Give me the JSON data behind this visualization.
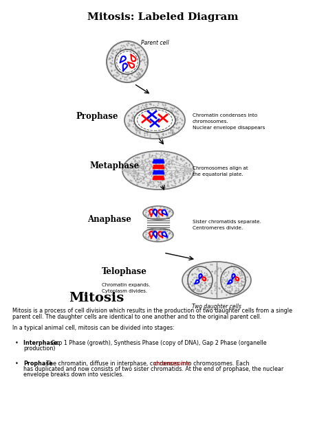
{
  "title": "Mitosis: Labeled Diagram",
  "bg_color": "#ffffff",
  "mitosis_label": "Mitosis",
  "para1_line1": "Mitosis is a process of cell division which results in the production of two daughter cells from a single",
  "para1_line2": "parent cell. The daughter cells are identical to one another and to the original parent cell.",
  "para2": "In a typical animal cell, mitosis can be divided into stages:",
  "bullet1_bold": "Interphase: ",
  "bullet1_rest": "Gap 1 Phase (growth), Synthesis Phase (copy of DNA), Gap 2 Phase (organelle",
  "bullet1_rest2": "production)",
  "bullet2_bold": "Prophase",
  "bullet2_rest": ": The chromatin, diffuse in interphase, condenses into chromosomes. Each ",
  "bullet2_link": "chromosome",
  "bullet2_line2": "has duplicated and now consists of two sister chromatids. At the end of prophase, the nuclear",
  "bullet2_line3": "envelope breaks down into vesicles.",
  "phase_labels": [
    "Prophase",
    "Metaphase",
    "Anaphase",
    "Telophase"
  ],
  "phase_notes": [
    [
      "Chromatin condenses into",
      "chromosomes.",
      "Nuclear envelope disappears"
    ],
    [
      "Chromosomes align at",
      "the equatorial plate."
    ],
    [
      "Sister chromatids separate.",
      "Centromeres divide."
    ],
    [
      "Chromatin expands.",
      "Cytoplasm divides."
    ]
  ],
  "parent_cell_label": "Parent cell",
  "daughter_cells_label": "Two daughter cells"
}
